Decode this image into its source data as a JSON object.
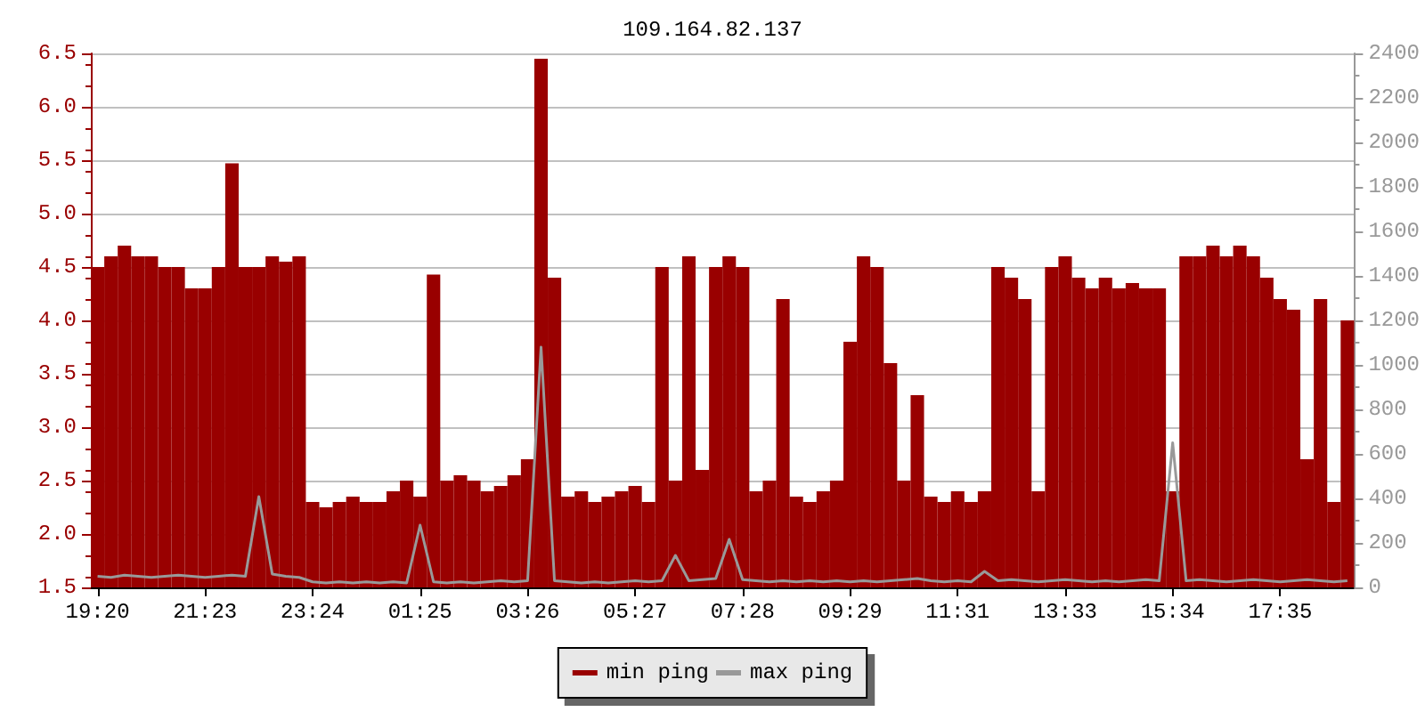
{
  "chart_data": {
    "type": "bar",
    "title": "109.164.82.137",
    "categories": [
      "19:20",
      null,
      null,
      null,
      null,
      null,
      null,
      null,
      "21:23",
      null,
      null,
      null,
      null,
      null,
      null,
      null,
      "23:24",
      null,
      null,
      null,
      null,
      null,
      null,
      null,
      "01:25",
      null,
      null,
      null,
      null,
      null,
      null,
      null,
      "03:26",
      null,
      null,
      null,
      null,
      null,
      null,
      null,
      "05:27",
      null,
      null,
      null,
      null,
      null,
      null,
      null,
      "07:28",
      null,
      null,
      null,
      null,
      null,
      null,
      null,
      "09:29",
      null,
      null,
      null,
      null,
      null,
      null,
      null,
      "11:31",
      null,
      null,
      null,
      null,
      null,
      null,
      null,
      "13:33",
      null,
      null,
      null,
      null,
      null,
      null,
      null,
      "15:34",
      null,
      null,
      null,
      null,
      null,
      null,
      null,
      "17:35",
      null,
      null,
      null,
      null,
      null
    ],
    "series": [
      {
        "name": "min ping",
        "color": "#990000",
        "values": [
          4.5,
          4.6,
          4.7,
          4.6,
          4.6,
          4.5,
          4.5,
          4.3,
          4.3,
          4.5,
          5.47,
          4.5,
          4.5,
          4.6,
          4.55,
          4.6,
          2.3,
          2.25,
          2.3,
          2.35,
          2.3,
          2.3,
          2.4,
          2.5,
          2.35,
          4.43,
          2.5,
          2.55,
          2.5,
          2.4,
          2.45,
          2.55,
          2.7,
          6.45,
          4.4,
          2.35,
          2.4,
          2.3,
          2.35,
          2.4,
          2.45,
          2.3,
          4.5,
          2.5,
          4.6,
          2.6,
          4.5,
          4.6,
          4.5,
          2.4,
          2.5,
          4.2,
          2.35,
          2.3,
          2.4,
          2.5,
          3.8,
          4.6,
          4.5,
          3.6,
          2.5,
          3.3,
          2.35,
          2.3,
          2.4,
          2.3,
          2.4,
          4.5,
          4.4,
          4.2,
          2.4,
          4.5,
          4.6,
          4.4,
          4.3,
          4.4,
          4.3,
          4.35,
          4.3,
          4.3,
          2.4,
          4.6,
          4.6,
          4.7,
          4.6,
          4.7,
          4.6,
          4.4,
          4.2,
          4.1,
          2.7,
          4.2,
          2.3,
          4.0
        ]
      },
      {
        "name": "max ping",
        "type": "line",
        "color": "#999999",
        "axis": "y2",
        "values": [
          50,
          45,
          55,
          50,
          45,
          50,
          55,
          50,
          45,
          50,
          55,
          50,
          408,
          60,
          50,
          45,
          25,
          20,
          25,
          20,
          25,
          20,
          25,
          20,
          280,
          25,
          20,
          25,
          20,
          25,
          30,
          25,
          30,
          1080,
          30,
          25,
          20,
          25,
          20,
          25,
          30,
          25,
          30,
          144,
          30,
          35,
          40,
          216,
          35,
          30,
          25,
          30,
          25,
          30,
          25,
          30,
          25,
          30,
          25,
          30,
          35,
          40,
          30,
          25,
          30,
          25,
          72,
          30,
          35,
          30,
          25,
          30,
          35,
          30,
          25,
          30,
          25,
          30,
          35,
          30,
          650,
          30,
          35,
          30,
          25,
          30,
          35,
          30,
          25,
          30,
          35,
          30,
          25,
          30
        ]
      }
    ],
    "ylim": [
      1.5,
      6.5
    ],
    "yticks": [
      1.5,
      {
        "value": 2,
        "label": "2.0"
      },
      2.5,
      {
        "value": 3,
        "label": "3.0"
      },
      3.5,
      {
        "value": 4,
        "label": "4.0"
      },
      4.5,
      {
        "value": 5,
        "label": "5.0"
      },
      5.5,
      {
        "value": 6,
        "label": "6.0"
      },
      6.5
    ],
    "y2lim": [
      0,
      2400
    ],
    "y2ticks": [
      0,
      200,
      400,
      600,
      800,
      1000,
      1200,
      1400,
      1600,
      1800,
      2000,
      2200,
      2400
    ],
    "grid": "y",
    "legend": "bottom"
  }
}
